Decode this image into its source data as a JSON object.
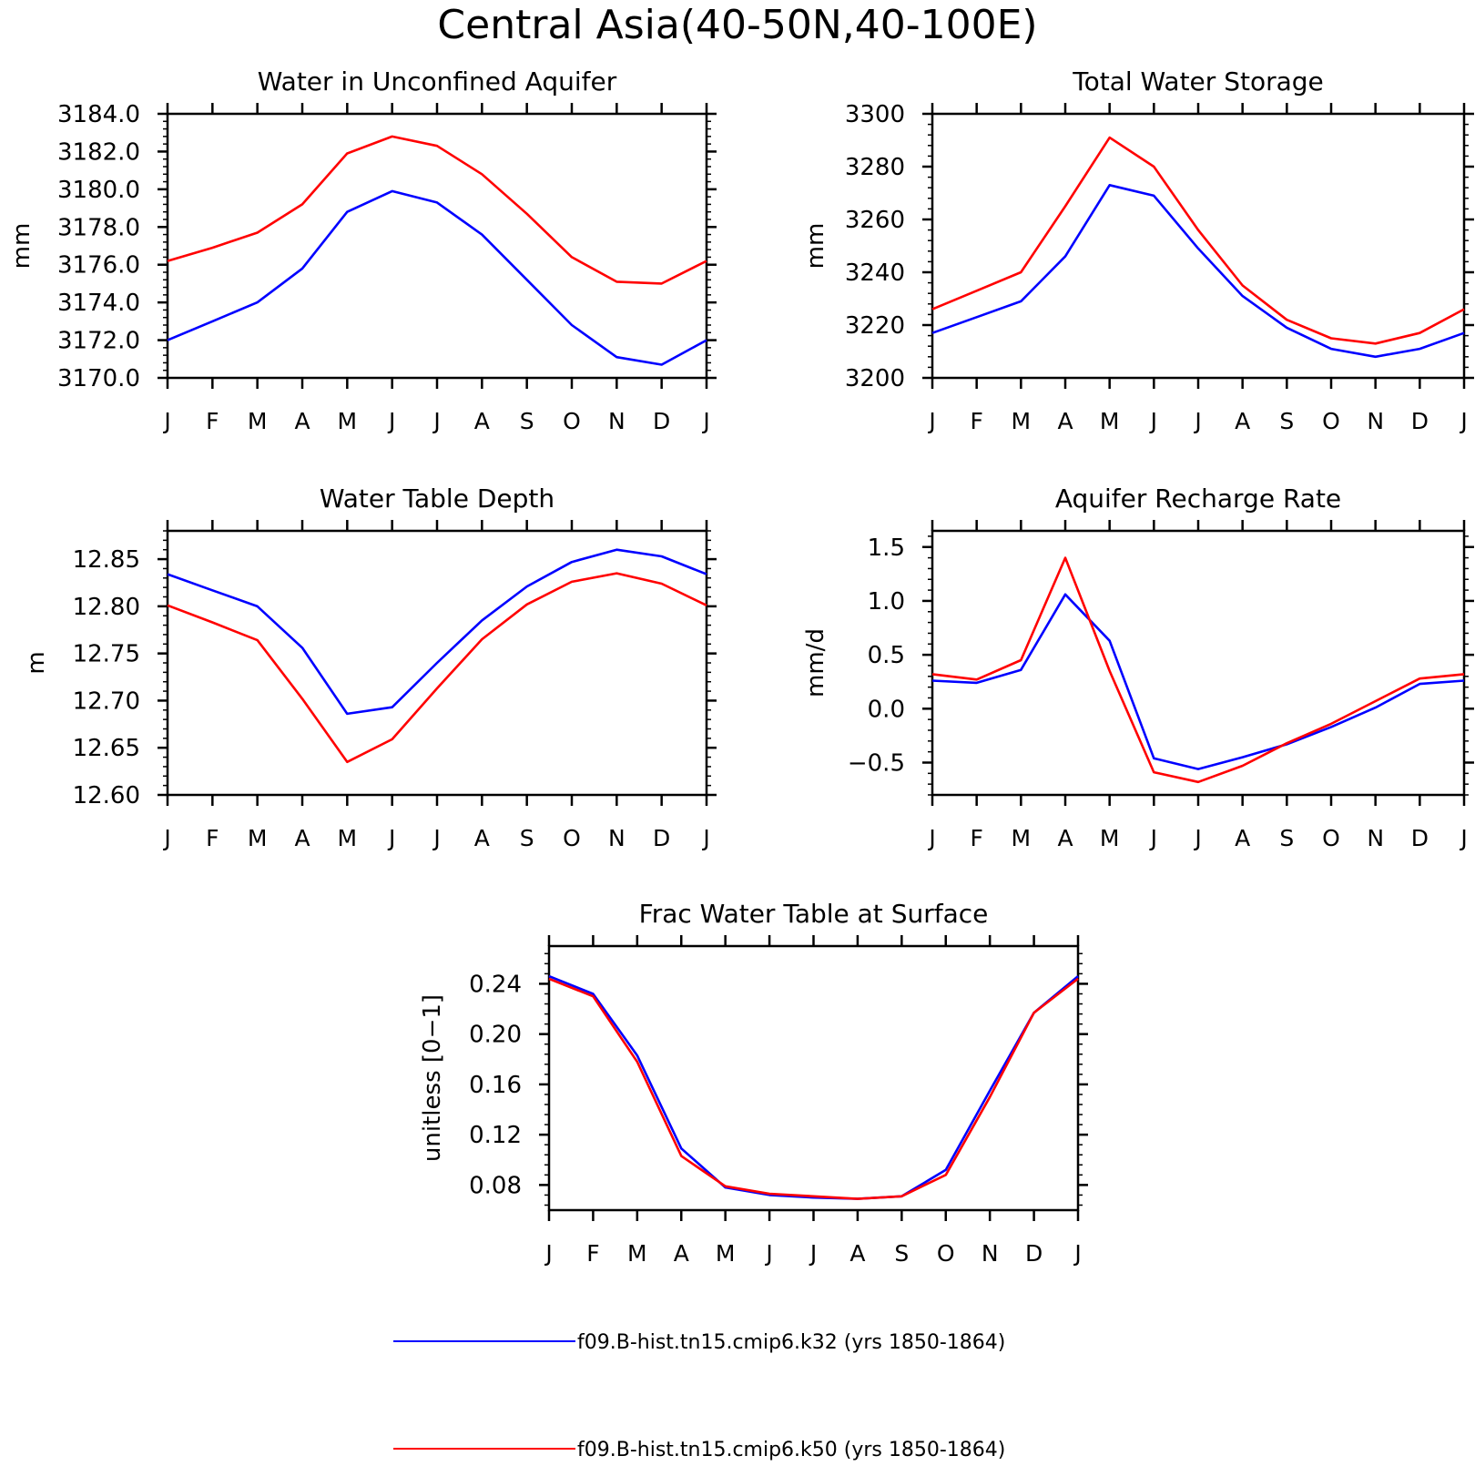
{
  "title": "Central Asia(40-50N,40-100E)",
  "legend": [
    {
      "label": "f09.B-hist.tn15.cmip6.k32 (yrs 1850-1864)",
      "color": "#0000ff"
    },
    {
      "label": "f09.B-hist.tn15.cmip6.k50 (yrs 1850-1864)",
      "color": "#ff0000"
    }
  ],
  "chart_data": [
    {
      "type": "line",
      "title": "Water in Unconfined Aquifer",
      "ylabel": "mm",
      "categories": [
        "J",
        "F",
        "M",
        "A",
        "M",
        "J",
        "J",
        "A",
        "S",
        "O",
        "N",
        "D",
        "J"
      ],
      "ylim": [
        3170.0,
        3184.0
      ],
      "yticks": [
        "3170.0",
        "3172.0",
        "3174.0",
        "3176.0",
        "3178.0",
        "3180.0",
        "3182.0",
        "3184.0"
      ],
      "series": [
        {
          "name": "f09.B-hist.tn15.cmip6.k32 (yrs 1850-1864)",
          "color": "#0000ff",
          "values": [
            3172.0,
            3173.0,
            3174.0,
            3175.8,
            3178.8,
            3179.9,
            3179.3,
            3177.6,
            3175.2,
            3172.8,
            3171.1,
            3170.7,
            3172.0
          ]
        },
        {
          "name": "f09.B-hist.tn15.cmip6.k50 (yrs 1850-1864)",
          "color": "#ff0000",
          "values": [
            3176.2,
            3176.9,
            3177.7,
            3179.2,
            3181.9,
            3182.8,
            3182.3,
            3180.8,
            3178.7,
            3176.4,
            3175.1,
            3175.0,
            3176.2
          ]
        }
      ]
    },
    {
      "type": "line",
      "title": "Total Water Storage",
      "ylabel": "mm",
      "categories": [
        "J",
        "F",
        "M",
        "A",
        "M",
        "J",
        "J",
        "A",
        "S",
        "O",
        "N",
        "D",
        "J"
      ],
      "ylim": [
        3200,
        3300
      ],
      "yticks": [
        "3200",
        "3220",
        "3240",
        "3260",
        "3280",
        "3300"
      ],
      "series": [
        {
          "name": "f09.B-hist.tn15.cmip6.k32 (yrs 1850-1864)",
          "color": "#0000ff",
          "values": [
            3217,
            3223,
            3229,
            3246,
            3273,
            3269,
            3249,
            3231,
            3219,
            3211,
            3208,
            3211,
            3217
          ]
        },
        {
          "name": "f09.B-hist.tn15.cmip6.k50 (yrs 1850-1864)",
          "color": "#ff0000",
          "values": [
            3226,
            3233,
            3240,
            3265,
            3291,
            3280,
            3256,
            3235,
            3222,
            3215,
            3213,
            3217,
            3226
          ]
        }
      ]
    },
    {
      "type": "line",
      "title": "Water Table Depth",
      "ylabel": "m",
      "categories": [
        "J",
        "F",
        "M",
        "A",
        "M",
        "J",
        "J",
        "A",
        "S",
        "O",
        "N",
        "D",
        "J"
      ],
      "ylim": [
        12.6,
        12.88
      ],
      "yticks": [
        "12.60",
        "12.65",
        "12.70",
        "12.75",
        "12.80",
        "12.85"
      ],
      "series": [
        {
          "name": "f09.B-hist.tn15.cmip6.k32 (yrs 1850-1864)",
          "color": "#0000ff",
          "values": [
            12.834,
            12.817,
            12.8,
            12.756,
            12.686,
            12.693,
            12.74,
            12.785,
            12.821,
            12.847,
            12.86,
            12.853,
            12.834
          ]
        },
        {
          "name": "f09.B-hist.tn15.cmip6.k50 (yrs 1850-1864)",
          "color": "#ff0000",
          "values": [
            12.801,
            12.783,
            12.764,
            12.702,
            12.635,
            12.659,
            12.713,
            12.765,
            12.802,
            12.826,
            12.835,
            12.824,
            12.801
          ]
        }
      ]
    },
    {
      "type": "line",
      "title": "Aquifer Recharge Rate",
      "ylabel": "mm/d",
      "categories": [
        "J",
        "F",
        "M",
        "A",
        "M",
        "J",
        "J",
        "A",
        "S",
        "O",
        "N",
        "D",
        "J"
      ],
      "ylim": [
        -0.8,
        1.65
      ],
      "yticks": [
        "−0.5",
        "0.0",
        "0.5",
        "1.0",
        "1.5"
      ],
      "series": [
        {
          "name": "f09.B-hist.tn15.cmip6.k32 (yrs 1850-1864)",
          "color": "#0000ff",
          "values": [
            0.26,
            0.24,
            0.36,
            1.06,
            0.63,
            -0.46,
            -0.56,
            -0.45,
            -0.33,
            -0.17,
            0.01,
            0.23,
            0.26
          ]
        },
        {
          "name": "f09.B-hist.tn15.cmip6.k50 (yrs 1850-1864)",
          "color": "#ff0000",
          "values": [
            0.32,
            0.27,
            0.45,
            1.4,
            0.35,
            -0.59,
            -0.68,
            -0.53,
            -0.32,
            -0.14,
            0.07,
            0.28,
            0.32
          ]
        }
      ]
    },
    {
      "type": "line",
      "title": "Frac Water Table at Surface",
      "ylabel": "unitless [0−1]",
      "categories": [
        "J",
        "F",
        "M",
        "A",
        "M",
        "J",
        "J",
        "A",
        "S",
        "O",
        "N",
        "D",
        "J"
      ],
      "ylim": [
        0.06,
        0.27
      ],
      "yticks": [
        "0.08",
        "0.12",
        "0.16",
        "0.20",
        "0.24"
      ],
      "series": [
        {
          "name": "f09.B-hist.tn15.cmip6.k32 (yrs 1850-1864)",
          "color": "#0000ff",
          "values": [
            0.246,
            0.232,
            0.183,
            0.109,
            0.078,
            0.072,
            0.07,
            0.069,
            0.071,
            0.092,
            0.155,
            0.217,
            0.246
          ]
        },
        {
          "name": "f09.B-hist.tn15.cmip6.k50 (yrs 1850-1864)",
          "color": "#ff0000",
          "values": [
            0.244,
            0.23,
            0.178,
            0.103,
            0.079,
            0.073,
            0.071,
            0.069,
            0.071,
            0.088,
            0.15,
            0.217,
            0.244
          ]
        }
      ]
    }
  ]
}
